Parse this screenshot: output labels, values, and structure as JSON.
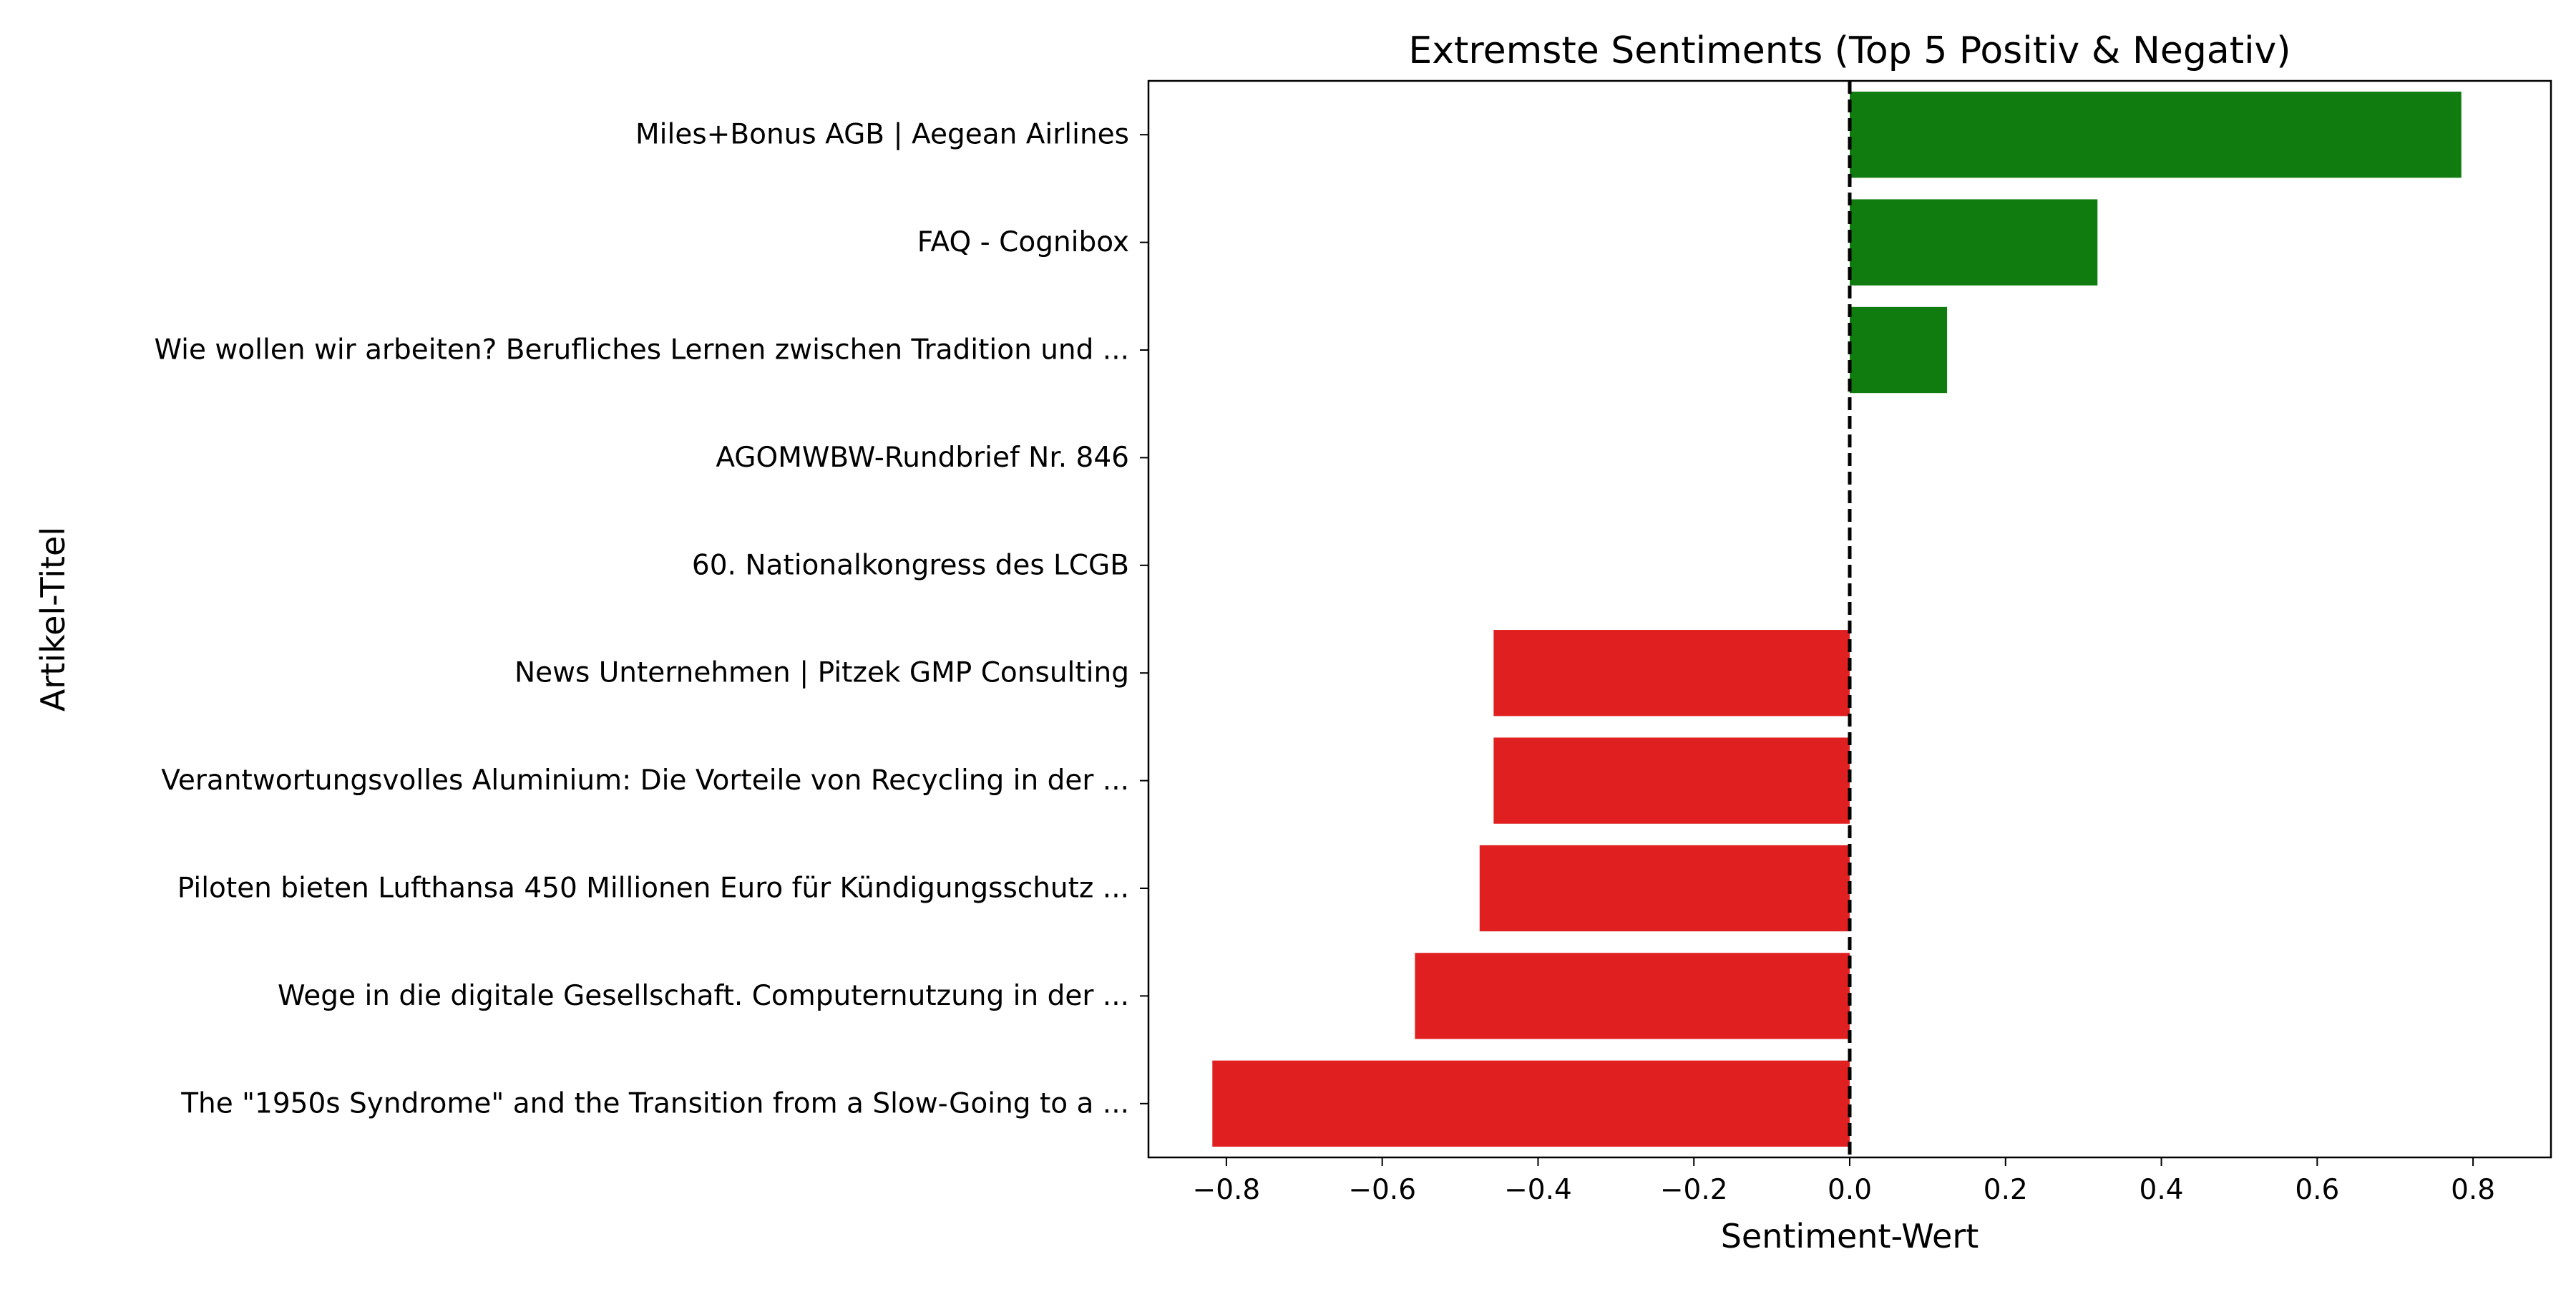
{
  "chart_data": {
    "type": "bar",
    "orientation": "horizontal",
    "title": "Extremste Sentiments (Top 5 Positiv & Negativ)",
    "xlabel": "Sentiment-Wert",
    "ylabel": "Artikel-Titel",
    "xlim": [
      -0.9,
      0.9
    ],
    "xticks": [
      -0.8,
      -0.6,
      -0.4,
      -0.2,
      0.0,
      0.2,
      0.4,
      0.6,
      0.8
    ],
    "xtick_labels": [
      "−0.8",
      "−0.6",
      "−0.4",
      "−0.2",
      "0.0",
      "0.2",
      "0.4",
      "0.6",
      "0.8"
    ],
    "grid": false,
    "reference_line": {
      "x": 0.0,
      "style": "dashed",
      "color": "#000000"
    },
    "categories": [
      "Miles+Bonus AGB | Aegean Airlines",
      "FAQ - Cognibox",
      "Wie wollen wir arbeiten? Berufliches Lernen zwischen Tradition und ...",
      "AGOMWBW-Rundbrief Nr. 846",
      "60. Nationalkongress des LCGB",
      "News Unternehmen | Pitzek GMP Consulting",
      "Verantwortungsvolles Aluminium: Die Vorteile von Recycling in der ...",
      "Piloten bieten Lufthansa 450 Millionen Euro für Kündigungsschutz ...",
      "Wege in die digitale Gesellschaft. Computernutzung in der ...",
      "The \"1950s Syndrome\" and the Transition from a Slow-Going to a ..."
    ],
    "values": [
      0.785,
      0.318,
      0.125,
      0.0,
      0.0,
      -0.457,
      -0.457,
      -0.475,
      -0.558,
      -0.818
    ],
    "colors": {
      "positive": "#107c10",
      "negative": "#e02020"
    }
  }
}
